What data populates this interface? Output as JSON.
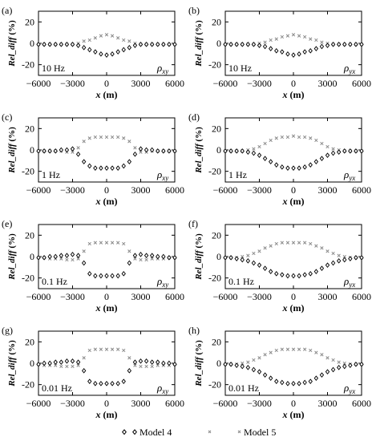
{
  "figure": {
    "legend": {
      "items": [
        {
          "marker": "diamond",
          "label": "Model 4"
        },
        {
          "marker": "cross",
          "label": "Model 5"
        }
      ]
    }
  },
  "chart_data": [
    {
      "type": "scatter",
      "panel_label": "(a)",
      "frequency_label": "10 Hz",
      "component_label": "ρxy",
      "xlabel": "x (m)",
      "ylabel": "Rel_diff (%)",
      "xlim": [
        -6000,
        6000
      ],
      "ylim": [
        -30,
        30
      ],
      "xticks": [
        -6000,
        -3000,
        0,
        3000,
        6000
      ],
      "yticks": [
        -20,
        0,
        20
      ],
      "grid": false,
      "series": [
        {
          "name": "Model 4",
          "x": [
            -6000,
            -5500,
            -5000,
            -4500,
            -4000,
            -3500,
            -3000,
            -2500,
            -2000,
            -1500,
            -1000,
            -500,
            0,
            500,
            1000,
            1500,
            2000,
            2500,
            3000,
            3500,
            4000,
            4500,
            5000,
            5500,
            6000
          ],
          "values": [
            -1,
            -1,
            -1,
            -1,
            -1,
            -1,
            -1,
            -2,
            -4,
            -6,
            -8,
            -10,
            -11,
            -10,
            -8,
            -6,
            -4,
            -2,
            -1,
            -1,
            -1,
            -1,
            -1,
            -1,
            -1
          ]
        },
        {
          "name": "Model 5",
          "x": [
            -6000,
            -5500,
            -5000,
            -4500,
            -4000,
            -3500,
            -3000,
            -2500,
            -2000,
            -1500,
            -1000,
            -500,
            0,
            500,
            1000,
            1500,
            2000,
            2500,
            3000,
            3500,
            4000,
            4500,
            5000,
            5500,
            6000
          ],
          "values": [
            -1,
            -1,
            -1,
            -1,
            -1,
            -1,
            -1,
            0,
            2,
            3,
            5,
            7,
            8,
            7,
            5,
            3,
            2,
            0,
            -1,
            -1,
            -1,
            -1,
            -1,
            -1,
            -1
          ]
        }
      ]
    },
    {
      "type": "scatter",
      "panel_label": "(b)",
      "frequency_label": "10 Hz",
      "component_label": "ρyx",
      "xlabel": "x (m)",
      "ylabel": "Rel_diff (%)",
      "xlim": [
        -6000,
        6000
      ],
      "ylim": [
        -30,
        30
      ],
      "xticks": [
        -6000,
        -3000,
        0,
        3000,
        6000
      ],
      "yticks": [
        -20,
        0,
        20
      ],
      "grid": false,
      "series": [
        {
          "name": "Model 4",
          "x": [
            -6000,
            -5500,
            -5000,
            -4500,
            -4000,
            -3500,
            -3000,
            -2500,
            -2000,
            -1500,
            -1000,
            -500,
            0,
            500,
            1000,
            1500,
            2000,
            2500,
            3000,
            3500,
            4000,
            4500,
            5000,
            5500,
            6000
          ],
          "values": [
            -1,
            -1,
            -1,
            -1,
            -1,
            -1,
            -2,
            -3,
            -5,
            -7,
            -8,
            -10,
            -11,
            -10,
            -8,
            -7,
            -5,
            -3,
            -2,
            -1,
            -1,
            -1,
            -1,
            -1,
            -1
          ]
        },
        {
          "name": "Model 5",
          "x": [
            -6000,
            -5500,
            -5000,
            -4500,
            -4000,
            -3500,
            -3000,
            -2500,
            -2000,
            -1500,
            -1000,
            -500,
            0,
            500,
            1000,
            1500,
            2000,
            2500,
            3000,
            3500,
            4000,
            4500,
            5000,
            5500,
            6000
          ],
          "values": [
            -1,
            -1,
            -1,
            -1,
            -1,
            -1,
            0,
            1,
            3,
            4,
            6,
            7,
            8,
            7,
            6,
            4,
            3,
            1,
            0,
            -1,
            -1,
            -1,
            -1,
            -1,
            -1
          ]
        }
      ]
    },
    {
      "type": "scatter",
      "panel_label": "(c)",
      "frequency_label": "1 Hz",
      "component_label": "ρxy",
      "xlabel": "x (m)",
      "ylabel": "Rel_diff (%)",
      "xlim": [
        -6000,
        6000
      ],
      "ylim": [
        -30,
        30
      ],
      "xticks": [
        -6000,
        -3000,
        0,
        3000,
        6000
      ],
      "yticks": [
        -20,
        0,
        20
      ],
      "grid": false,
      "series": [
        {
          "name": "Model 4",
          "x": [
            -6000,
            -5500,
            -5000,
            -4500,
            -4000,
            -3500,
            -3000,
            -2500,
            -2000,
            -1500,
            -1000,
            -500,
            0,
            500,
            1000,
            1500,
            2000,
            2500,
            3000,
            3500,
            4000,
            4500,
            5000,
            5500,
            6000
          ],
          "values": [
            -1,
            -1,
            -1,
            -1,
            0,
            0,
            1,
            -4,
            -11,
            -15,
            -17,
            -17,
            -17,
            -17,
            -17,
            -15,
            -11,
            -4,
            1,
            0,
            0,
            -1,
            -1,
            -1,
            -1
          ]
        },
        {
          "name": "Model 5",
          "x": [
            -6000,
            -5500,
            -5000,
            -4500,
            -4000,
            -3500,
            -3000,
            -2500,
            -2000,
            -1500,
            -1000,
            -500,
            0,
            500,
            1000,
            1500,
            2000,
            2500,
            3000,
            3500,
            4000,
            4500,
            5000,
            5500,
            6000
          ],
          "values": [
            -1,
            -1,
            -1,
            -1,
            -1,
            -2,
            -2,
            2,
            8,
            11,
            12,
            12,
            12,
            12,
            12,
            11,
            8,
            2,
            -2,
            -2,
            -1,
            -1,
            -1,
            -1,
            -1
          ]
        }
      ]
    },
    {
      "type": "scatter",
      "panel_label": "(d)",
      "frequency_label": "1 Hz",
      "component_label": "ρyx",
      "xlabel": "x (m)",
      "ylabel": "Rel_diff (%)",
      "xlim": [
        -6000,
        6000
      ],
      "ylim": [
        -30,
        30
      ],
      "xticks": [
        -6000,
        -3000,
        0,
        3000,
        6000
      ],
      "yticks": [
        -20,
        0,
        20
      ],
      "grid": false,
      "series": [
        {
          "name": "Model 4",
          "x": [
            -6000,
            -5500,
            -5000,
            -4500,
            -4000,
            -3500,
            -3000,
            -2500,
            -2000,
            -1500,
            -1000,
            -500,
            0,
            500,
            1000,
            1500,
            2000,
            2500,
            3000,
            3500,
            4000,
            4500,
            5000,
            5500,
            6000
          ],
          "values": [
            -1,
            -1,
            -1,
            -1,
            -2,
            -3,
            -5,
            -8,
            -11,
            -14,
            -16,
            -17,
            -17,
            -17,
            -16,
            -14,
            -11,
            -8,
            -5,
            -3,
            -2,
            -1,
            -1,
            -1,
            -1
          ]
        },
        {
          "name": "Model 5",
          "x": [
            -6000,
            -5500,
            -5000,
            -4500,
            -4000,
            -3500,
            -3000,
            -2500,
            -2000,
            -1500,
            -1000,
            -500,
            0,
            500,
            1000,
            1500,
            2000,
            2500,
            3000,
            3500,
            4000,
            4500,
            5000,
            5500,
            6000
          ],
          "values": [
            -1,
            -1,
            -1,
            -1,
            0,
            1,
            3,
            6,
            9,
            11,
            12,
            12,
            13,
            12,
            12,
            11,
            9,
            6,
            3,
            1,
            0,
            -1,
            -1,
            -1,
            -1
          ]
        }
      ]
    },
    {
      "type": "scatter",
      "panel_label": "(e)",
      "frequency_label": "0.1 Hz",
      "component_label": "ρxy",
      "xlabel": "x (m)",
      "ylabel": "Rel_diff (%)",
      "xlim": [
        -6000,
        6000
      ],
      "ylim": [
        -30,
        30
      ],
      "xticks": [
        -6000,
        -3000,
        0,
        3000,
        6000
      ],
      "yticks": [
        -20,
        0,
        20
      ],
      "grid": false,
      "series": [
        {
          "name": "Model 4",
          "x": [
            -6000,
            -5500,
            -5000,
            -4500,
            -4000,
            -3500,
            -3000,
            -2500,
            -2000,
            -1500,
            -1000,
            -500,
            0,
            500,
            1000,
            1500,
            2000,
            2500,
            3000,
            3500,
            4000,
            4500,
            5000,
            5500,
            6000
          ],
          "values": [
            -1,
            -1,
            0,
            0,
            1,
            1,
            2,
            1,
            -6,
            -16,
            -18,
            -18,
            -18,
            -18,
            -18,
            -16,
            -6,
            1,
            2,
            1,
            1,
            0,
            0,
            -1,
            -1
          ]
        },
        {
          "name": "Model 5",
          "x": [
            -6000,
            -5500,
            -5000,
            -4500,
            -4000,
            -3500,
            -3000,
            -2500,
            -2000,
            -1500,
            -1000,
            -500,
            0,
            500,
            1000,
            1500,
            2000,
            2500,
            3000,
            3500,
            4000,
            4500,
            5000,
            5500,
            6000
          ],
          "values": [
            -1,
            -1,
            -2,
            -2,
            -2,
            -3,
            -3,
            -2,
            5,
            12,
            13,
            13,
            13,
            13,
            13,
            12,
            5,
            -2,
            -3,
            -3,
            -2,
            -2,
            -2,
            -1,
            -1
          ]
        }
      ]
    },
    {
      "type": "scatter",
      "panel_label": "(f)",
      "frequency_label": "0.1 Hz",
      "component_label": "ρyx",
      "xlabel": "x (m)",
      "ylabel": "Rel_diff (%)",
      "xlim": [
        -6000,
        6000
      ],
      "ylim": [
        -30,
        30
      ],
      "xticks": [
        -6000,
        -3000,
        0,
        3000,
        6000
      ],
      "yticks": [
        -20,
        0,
        20
      ],
      "grid": false,
      "series": [
        {
          "name": "Model 4",
          "x": [
            -6000,
            -5500,
            -5000,
            -4500,
            -4000,
            -3500,
            -3000,
            -2500,
            -2000,
            -1500,
            -1000,
            -500,
            0,
            500,
            1000,
            1500,
            2000,
            2500,
            3000,
            3500,
            4000,
            4500,
            5000,
            5500,
            6000
          ],
          "values": [
            -1,
            -1,
            -2,
            -3,
            -4,
            -6,
            -8,
            -11,
            -14,
            -16,
            -17,
            -18,
            -18,
            -18,
            -17,
            -16,
            -14,
            -11,
            -8,
            -6,
            -4,
            -3,
            -2,
            -1,
            -1
          ]
        },
        {
          "name": "Model 5",
          "x": [
            -6000,
            -5500,
            -5000,
            -4500,
            -4000,
            -3500,
            -3000,
            -2500,
            -2000,
            -1500,
            -1000,
            -500,
            0,
            500,
            1000,
            1500,
            2000,
            2500,
            3000,
            3500,
            4000,
            4500,
            5000,
            5500,
            6000
          ],
          "values": [
            -1,
            -1,
            -1,
            0,
            1,
            3,
            5,
            8,
            10,
            12,
            13,
            13,
            13,
            13,
            13,
            12,
            10,
            8,
            5,
            3,
            1,
            0,
            -1,
            -1,
            -1
          ]
        }
      ]
    },
    {
      "type": "scatter",
      "panel_label": "(g)",
      "frequency_label": "0.01 Hz",
      "component_label": "ρxy",
      "xlabel": "x (m)",
      "ylabel": "Rel_diff (%)",
      "xlim": [
        -6000,
        6000
      ],
      "ylim": [
        -30,
        30
      ],
      "xticks": [
        -6000,
        -3000,
        0,
        3000,
        6000
      ],
      "yticks": [
        -20,
        0,
        20
      ],
      "grid": false,
      "series": [
        {
          "name": "Model 4",
          "x": [
            -6000,
            -5500,
            -5000,
            -4500,
            -4000,
            -3500,
            -3000,
            -2500,
            -2000,
            -1500,
            -1000,
            -500,
            0,
            500,
            1000,
            1500,
            2000,
            2500,
            3000,
            3500,
            4000,
            4500,
            5000,
            5500,
            6000
          ],
          "values": [
            -1,
            0,
            0,
            1,
            1,
            2,
            2,
            1,
            -7,
            -17,
            -19,
            -19,
            -19,
            -19,
            -19,
            -17,
            -7,
            1,
            2,
            2,
            1,
            1,
            0,
            0,
            -1
          ]
        },
        {
          "name": "Model 5",
          "x": [
            -6000,
            -5500,
            -5000,
            -4500,
            -4000,
            -3500,
            -3000,
            -2500,
            -2000,
            -1500,
            -1000,
            -500,
            0,
            500,
            1000,
            1500,
            2000,
            2500,
            3000,
            3500,
            4000,
            4500,
            5000,
            5500,
            6000
          ],
          "values": [
            -1,
            -2,
            -2,
            -2,
            -3,
            -3,
            -3,
            -2,
            5,
            12,
            13,
            13,
            13,
            13,
            13,
            12,
            5,
            -2,
            -3,
            -3,
            -3,
            -2,
            -2,
            -2,
            -1
          ]
        }
      ]
    },
    {
      "type": "scatter",
      "panel_label": "(h)",
      "frequency_label": "0.01 Hz",
      "component_label": "ρyx",
      "xlabel": "x (m)",
      "ylabel": "Rel_diff (%)",
      "xlim": [
        -6000,
        6000
      ],
      "ylim": [
        -30,
        30
      ],
      "xticks": [
        -6000,
        -3000,
        0,
        3000,
        6000
      ],
      "yticks": [
        -20,
        0,
        20
      ],
      "grid": false,
      "series": [
        {
          "name": "Model 4",
          "x": [
            -6000,
            -5500,
            -5000,
            -4500,
            -4000,
            -3500,
            -3000,
            -2500,
            -2000,
            -1500,
            -1000,
            -500,
            0,
            500,
            1000,
            1500,
            2000,
            2500,
            3000,
            3500,
            4000,
            4500,
            5000,
            5500,
            6000
          ],
          "values": [
            -1,
            -1,
            -2,
            -3,
            -4,
            -6,
            -8,
            -11,
            -14,
            -17,
            -18,
            -19,
            -19,
            -19,
            -18,
            -17,
            -14,
            -11,
            -8,
            -6,
            -4,
            -3,
            -2,
            -1,
            -1
          ]
        },
        {
          "name": "Model 5",
          "x": [
            -6000,
            -5500,
            -5000,
            -4500,
            -4000,
            -3500,
            -3000,
            -2500,
            -2000,
            -1500,
            -1000,
            -500,
            0,
            500,
            1000,
            1500,
            2000,
            2500,
            3000,
            3500,
            4000,
            4500,
            5000,
            5500,
            6000
          ],
          "values": [
            -1,
            -1,
            -1,
            0,
            1,
            3,
            5,
            8,
            10,
            12,
            13,
            13,
            13,
            13,
            13,
            12,
            10,
            8,
            5,
            3,
            1,
            0,
            -1,
            -1,
            -1
          ]
        }
      ]
    }
  ]
}
